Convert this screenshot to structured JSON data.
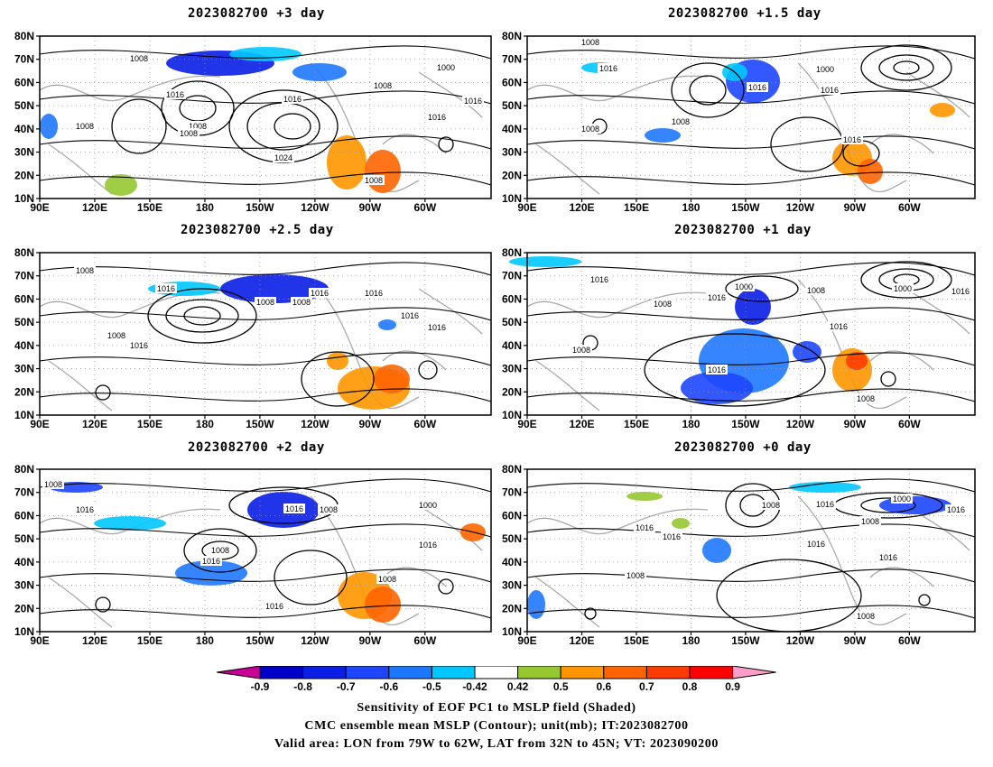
{
  "panels": [
    {
      "title": "2023082700 +3 day",
      "clabels": [
        "1008",
        "1016",
        "1008",
        "1008",
        "1016",
        "1000",
        "1008",
        "1016",
        "1008",
        "1024",
        "1008",
        "1016"
      ]
    },
    {
      "title": "2023082700 +1.5 day",
      "clabels": [
        "1008",
        "1016",
        "1008",
        "1000",
        "1016",
        "1016",
        "1008",
        "1016"
      ]
    },
    {
      "title": "2023082700 +2.5 day",
      "clabels": [
        "1008",
        "1016",
        "1008",
        "1016",
        "1016",
        "1008",
        "1008",
        "1016",
        "1016",
        "1016"
      ]
    },
    {
      "title": "2023082700 +1 day",
      "clabels": [
        "1016",
        "1000",
        "1008",
        "1016",
        "1008",
        "1000",
        "1016",
        "1008",
        "1016",
        "1016",
        "1008"
      ]
    },
    {
      "title": "2023082700 +2 day",
      "clabels": [
        "1008",
        "1016",
        "1016",
        "1008",
        "1000",
        "1008",
        "1016",
        "1016",
        "1008",
        "1016"
      ]
    },
    {
      "title": "2023082700 +0 day",
      "clabels": [
        "1016",
        "1008",
        "1016",
        "1000",
        "1008",
        "1016",
        "1016",
        "1008",
        "1016",
        "1016",
        "1008"
      ]
    }
  ],
  "axes": {
    "lat_ticks": [
      "80N",
      "70N",
      "60N",
      "50N",
      "40N",
      "30N",
      "20N",
      "10N"
    ],
    "lon_ticks": [
      "90E",
      "120E",
      "150E",
      "180",
      "150W",
      "120W",
      "90W",
      "60W"
    ]
  },
  "colorbar": {
    "labels": [
      "-0.9",
      "-0.8",
      "-0.7",
      "-0.6",
      "-0.5",
      "-0.42",
      "0.42",
      "0.5",
      "0.6",
      "0.7",
      "0.8",
      "0.9"
    ],
    "colors": [
      "#0000c8",
      "#0a1ee6",
      "#1e46ff",
      "#1e78ff",
      "#00c8ff",
      "#ffffff",
      "#96c832",
      "#ff9600",
      "#ff6400",
      "#ff3c00",
      "#ff0000"
    ],
    "low_color": "#c80096",
    "high_color": "#ff9ec8"
  },
  "footer": {
    "line1": "Sensitivity of EOF PC1 to MSLP field (Shaded)",
    "line2": "CMC ensemble mean MSLP (Contour); unit(mb); IT:2023082700",
    "line3": "Valid area: LON from 79W to 62W, LAT from 32N to 45N; VT: 2023090200"
  }
}
